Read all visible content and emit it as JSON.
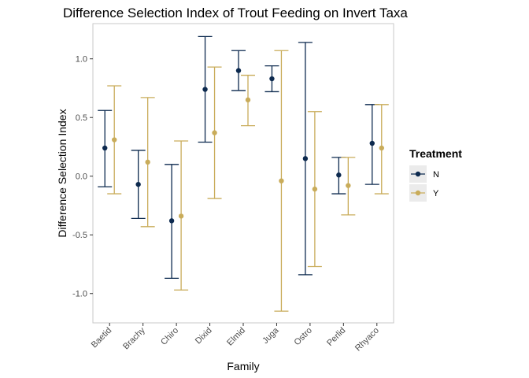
{
  "chart_data": {
    "type": "errorbar",
    "title": "Difference Selection Index of Trout Feeding on Invert Taxa",
    "xlabel": "Family",
    "ylabel": "Difference Selection Index",
    "categories": [
      "Baetid",
      "Brachy",
      "Chiro",
      "Dixid",
      "Elmid",
      "Juga",
      "Ostro",
      "Perlid",
      "Rhyaco"
    ],
    "ylim": [
      -1.25,
      1.3
    ],
    "yticks": [
      -1.0,
      -0.5,
      0.0,
      0.5,
      1.0
    ],
    "ytick_labels": [
      "-1.0",
      "-0.5",
      "0.0",
      "0.5",
      "1.0"
    ],
    "grid": false,
    "legend": {
      "title": "Treatment",
      "placement": "right"
    },
    "series": [
      {
        "name": "N",
        "color": "#0d2a4f",
        "mean": [
          0.24,
          -0.07,
          -0.38,
          0.74,
          0.9,
          0.83,
          0.15,
          0.01,
          0.28
        ],
        "lower": [
          -0.09,
          -0.36,
          -0.87,
          0.29,
          0.73,
          0.72,
          -0.84,
          -0.15,
          -0.07
        ],
        "upper": [
          0.56,
          0.22,
          0.1,
          1.19,
          1.07,
          0.94,
          1.14,
          0.16,
          0.61
        ]
      },
      {
        "name": "Y",
        "color": "#c9ac5a",
        "mean": [
          0.31,
          0.12,
          -0.34,
          0.37,
          0.65,
          -0.04,
          -0.11,
          -0.08,
          0.24
        ],
        "lower": [
          -0.15,
          -0.43,
          -0.97,
          -0.19,
          0.43,
          -1.15,
          -0.77,
          -0.33,
          -0.15
        ],
        "upper": [
          0.77,
          0.67,
          0.3,
          0.93,
          0.86,
          1.07,
          0.55,
          0.16,
          0.61
        ]
      }
    ]
  }
}
